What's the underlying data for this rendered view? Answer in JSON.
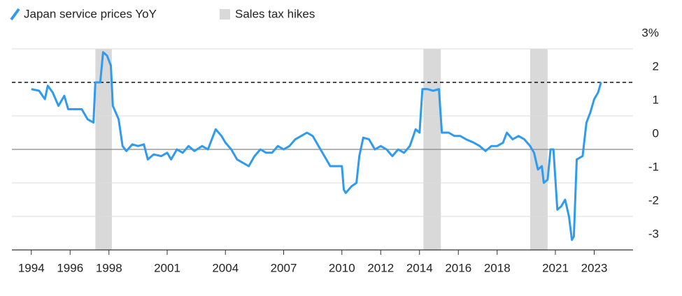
{
  "chart_data": {
    "type": "line",
    "series": [
      {
        "name": "Japan service prices YoY",
        "color": "#2e9bf0",
        "values": [
          1.8,
          1.75,
          1.5,
          1.9,
          1.7,
          1.3,
          1.6,
          1.2,
          1.2,
          1.2,
          0.9,
          0.8,
          2.0,
          2.0,
          2.9,
          2.8,
          2.5,
          1.3,
          0.9,
          0.1,
          -0.05,
          0.15,
          0.1,
          0.15,
          -0.3,
          -0.15,
          -0.2,
          -0.1,
          -0.3,
          0.0,
          -0.1,
          0.1,
          -0.05,
          0.1,
          0.0,
          0.3,
          0.6,
          0.4,
          0.2,
          0.0,
          -0.3,
          -0.4,
          -0.5,
          -0.2,
          0.0,
          -0.1,
          -0.1,
          0.1,
          0.0,
          0.1,
          0.3,
          0.4,
          0.5,
          0.4,
          0.1,
          -0.2,
          -0.5,
          -0.5,
          -0.5,
          -1.2,
          -1.3,
          -1.1,
          -1.0,
          -0.2,
          0.35,
          0.3,
          0.0,
          0.1,
          0.0,
          -0.2,
          0.0,
          -0.1,
          0.1,
          0.6,
          0.5,
          1.8,
          1.8,
          1.75,
          1.8,
          0.5,
          0.5,
          0.4,
          0.4,
          0.3,
          0.2,
          0.1,
          -0.05,
          0.1,
          0.1,
          0.2,
          0.5,
          0.3,
          0.4,
          0.3,
          0.1,
          -0.1,
          -0.6,
          -0.5,
          -1.0,
          -0.9,
          0.0,
          0.0,
          -1.8,
          -1.7,
          -1.5,
          -2.0,
          -2.7,
          -2.6,
          -0.3,
          -0.2,
          0.8,
          1.1,
          1.5,
          1.7,
          2.0
        ]
      }
    ],
    "x": [
      1994.0,
      1994.4,
      1994.7,
      1994.85,
      1995.1,
      1995.4,
      1995.7,
      1995.9,
      1996.3,
      1996.6,
      1996.9,
      1997.2,
      1997.3,
      1997.55,
      1997.7,
      1997.9,
      1998.1,
      1998.2,
      1998.5,
      1998.7,
      1998.9,
      1999.2,
      1999.5,
      1999.8,
      2000.0,
      2000.3,
      2000.7,
      2001.0,
      2001.2,
      2001.5,
      2001.8,
      2002.1,
      2002.4,
      2002.8,
      2003.1,
      2003.3,
      2003.5,
      2003.8,
      2004.0,
      2004.3,
      2004.6,
      2004.9,
      2005.2,
      2005.5,
      2005.8,
      2006.1,
      2006.4,
      2006.7,
      2007.0,
      2007.3,
      2007.6,
      2007.9,
      2008.2,
      2008.5,
      2008.8,
      2009.1,
      2009.4,
      2009.7,
      2010.0,
      2010.1,
      2010.2,
      2010.5,
      2010.75,
      2010.9,
      2011.1,
      2011.4,
      2011.7,
      2012.0,
      2012.3,
      2012.6,
      2012.9,
      2013.2,
      2013.5,
      2013.8,
      2014.0,
      2014.15,
      2014.4,
      2014.7,
      2015.0,
      2015.15,
      2015.5,
      2015.8,
      2016.1,
      2016.4,
      2016.8,
      2017.1,
      2017.4,
      2017.7,
      2018.0,
      2018.3,
      2018.5,
      2018.8,
      2019.1,
      2019.4,
      2019.7,
      2019.9,
      2020.1,
      2020.3,
      2020.4,
      2020.6,
      2020.75,
      2020.9,
      2021.1,
      2021.3,
      2021.5,
      2021.7,
      2021.85,
      2021.95,
      2022.1,
      2022.4,
      2022.6,
      2022.8,
      2023.0,
      2023.2,
      2023.35
    ],
    "tax_hikes": {
      "name": "Sales tax hikes",
      "color": "#d9d9d9",
      "ranges": [
        [
          1997.3,
          1998.15
        ],
        [
          2014.2,
          2015.1
        ],
        [
          2019.7,
          2020.6
        ]
      ]
    },
    "reference_line": 2,
    "xlim": [
      1993,
      2025
    ],
    "xticks": [
      1994,
      1996,
      1998,
      2001,
      2004,
      2007,
      2010,
      2012,
      2014,
      2016,
      2018,
      2021,
      2023
    ],
    "ylim": [
      -3,
      3
    ],
    "yticks": [
      {
        "value": 3,
        "label": "3%"
      },
      2,
      1,
      0,
      -1,
      -2,
      -3
    ],
    "grid": true
  }
}
